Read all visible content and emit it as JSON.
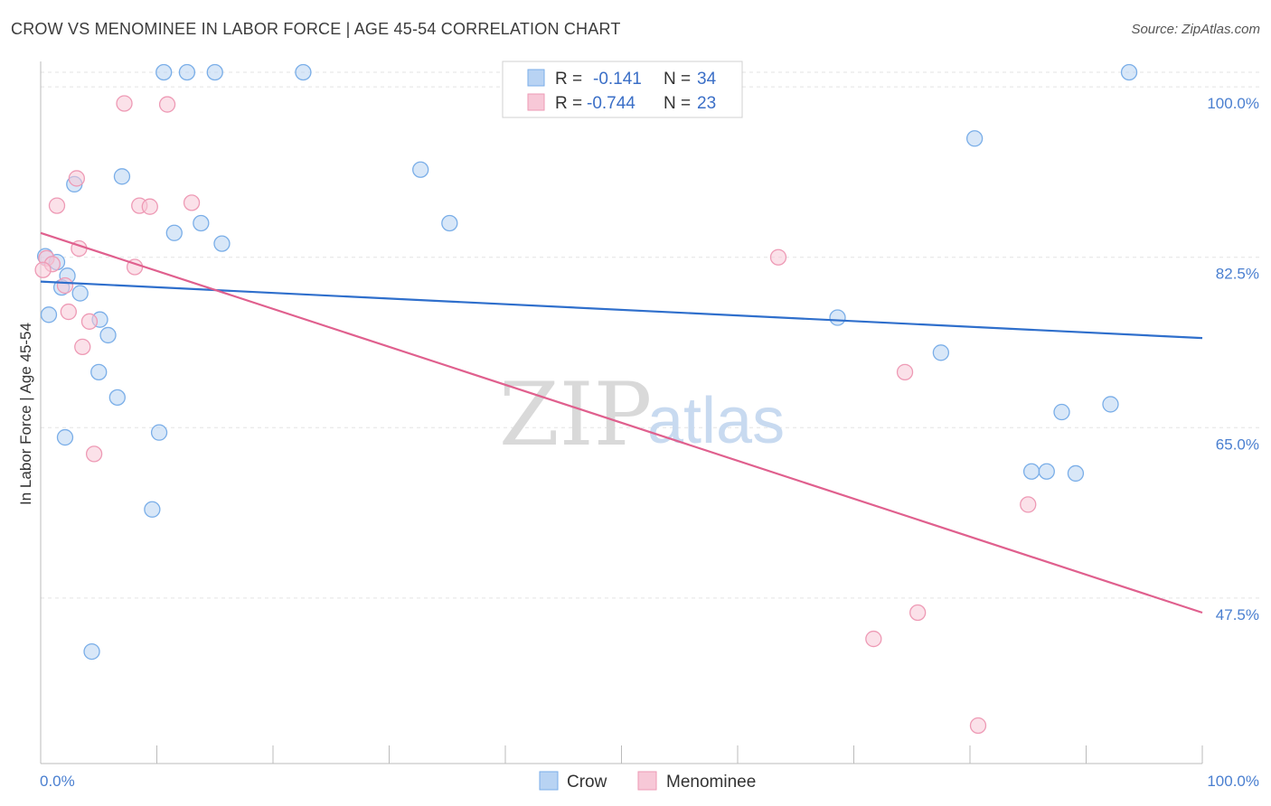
{
  "title": "CROW VS MENOMINEE IN LABOR FORCE | AGE 45-54 CORRELATION CHART",
  "source": "Source: ZipAtlas.com",
  "watermark": {
    "zip": "ZIP",
    "atlas": "atlas"
  },
  "chart_data": {
    "type": "scatter",
    "title": "CROW VS MENOMINEE IN LABOR FORCE | AGE 45-54 CORRELATION CHART",
    "xlabel": "",
    "ylabel": "In Labor Force | Age 45-54",
    "xlim": [
      0,
      100
    ],
    "ylim": [
      30.5,
      101.5
    ],
    "x_tick_labels": {
      "left": "0.0%",
      "right": "100.0%"
    },
    "y_ticks": [
      {
        "value": 100,
        "label": "100.0%"
      },
      {
        "value": 82.5,
        "label": "82.5%"
      },
      {
        "value": 65,
        "label": "65.0%"
      },
      {
        "value": 47.5,
        "label": "47.5%"
      }
    ],
    "grid": true,
    "legend": {
      "position": "top-center",
      "rows": [
        {
          "r_label": "R =",
          "r_value": "-0.141",
          "n_label": "N =",
          "n_value": "34"
        },
        {
          "r_label": "R =",
          "r_value": "-0.744",
          "n_label": "N =",
          "n_value": "23"
        }
      ]
    },
    "series": [
      {
        "name": "Crow",
        "color": "#7aaee8",
        "fill": "#b8d3f3",
        "line_color": "#2f6fcc",
        "trend": {
          "x0": 0,
          "y0": 80.0,
          "x1": 100,
          "y1": 74.2
        },
        "points": [
          [
            10.6,
            101.5
          ],
          [
            12.6,
            101.5
          ],
          [
            15.0,
            101.5
          ],
          [
            22.6,
            101.5
          ],
          [
            93.7,
            101.5
          ],
          [
            80.4,
            94.7
          ],
          [
            7.0,
            90.8
          ],
          [
            2.9,
            90.0
          ],
          [
            32.7,
            91.5
          ],
          [
            35.2,
            86.0
          ],
          [
            11.5,
            85.0
          ],
          [
            13.8,
            86.0
          ],
          [
            15.6,
            83.9
          ],
          [
            0.4,
            82.6
          ],
          [
            1.4,
            82.0
          ],
          [
            2.3,
            80.6
          ],
          [
            1.8,
            79.4
          ],
          [
            3.4,
            78.8
          ],
          [
            0.7,
            76.6
          ],
          [
            5.1,
            76.1
          ],
          [
            5.8,
            74.5
          ],
          [
            68.6,
            76.3
          ],
          [
            77.5,
            72.7
          ],
          [
            5.0,
            70.7
          ],
          [
            6.6,
            68.1
          ],
          [
            87.9,
            66.6
          ],
          [
            92.1,
            67.4
          ],
          [
            2.1,
            64.0
          ],
          [
            10.2,
            64.5
          ],
          [
            85.3,
            60.5
          ],
          [
            86.6,
            60.5
          ],
          [
            89.1,
            60.3
          ],
          [
            9.6,
            56.6
          ],
          [
            4.4,
            42.0
          ]
        ]
      },
      {
        "name": "Menominee",
        "color": "#ee9ab5",
        "fill": "#f7c8d7",
        "line_color": "#e0608e",
        "trend": {
          "x0": 0,
          "y0": 85.0,
          "x1": 100,
          "y1": 46.0
        },
        "points": [
          [
            7.2,
            98.3
          ],
          [
            10.9,
            98.2
          ],
          [
            3.1,
            90.6
          ],
          [
            1.4,
            87.8
          ],
          [
            8.5,
            87.8
          ],
          [
            9.4,
            87.7
          ],
          [
            13.0,
            88.1
          ],
          [
            3.3,
            83.4
          ],
          [
            0.5,
            82.4
          ],
          [
            1.0,
            81.8
          ],
          [
            8.1,
            81.5
          ],
          [
            63.5,
            82.5
          ],
          [
            2.1,
            79.6
          ],
          [
            2.4,
            76.9
          ],
          [
            4.2,
            75.9
          ],
          [
            3.6,
            73.3
          ],
          [
            74.4,
            70.7
          ],
          [
            4.6,
            62.3
          ],
          [
            85.0,
            57.1
          ],
          [
            75.5,
            46.0
          ],
          [
            71.7,
            43.3
          ],
          [
            80.7,
            34.4
          ],
          [
            0.2,
            81.2
          ]
        ]
      }
    ]
  }
}
